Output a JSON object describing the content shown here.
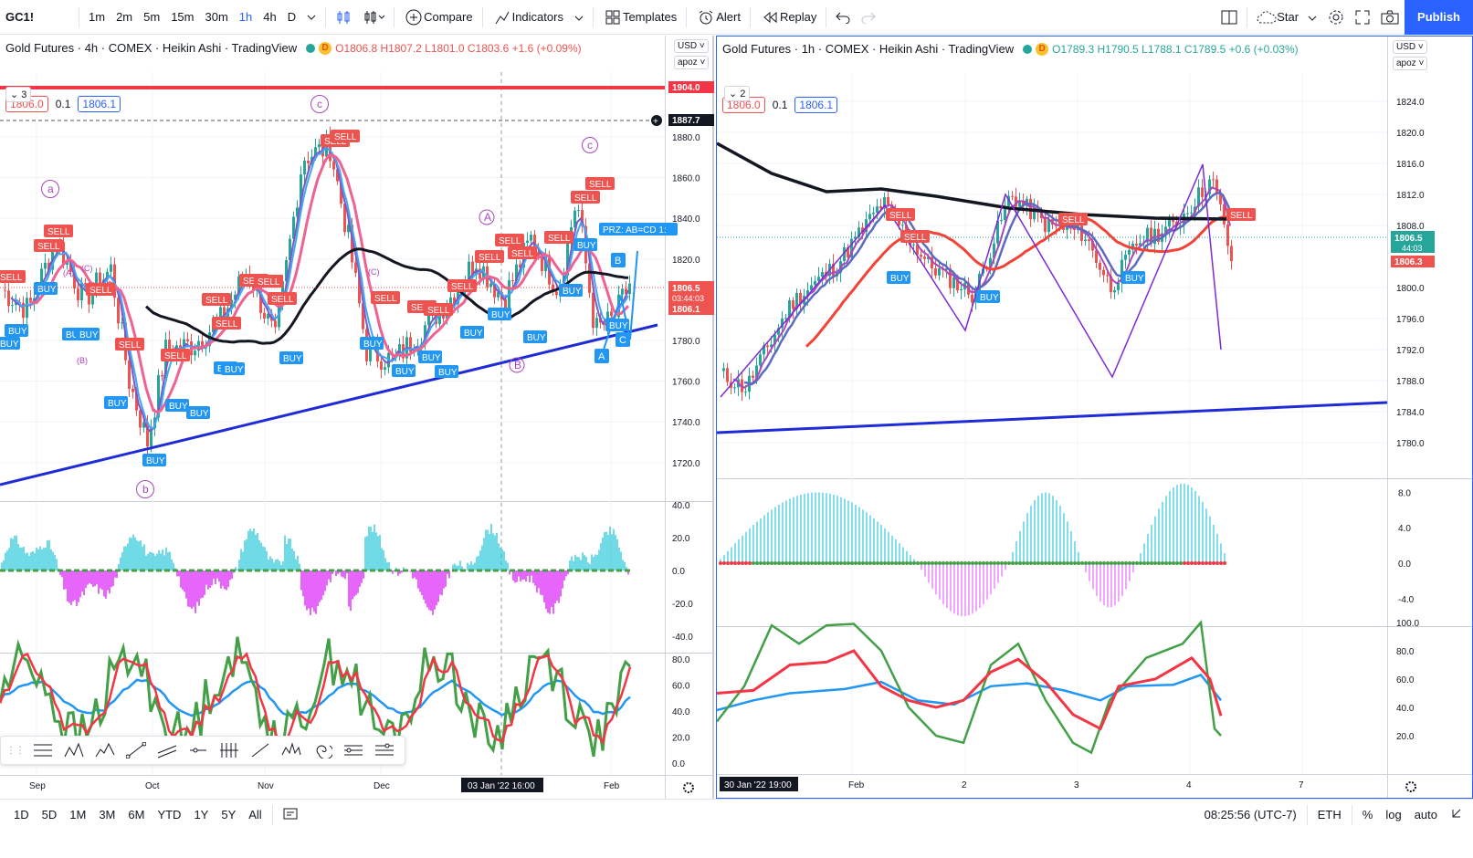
{
  "topbar": {
    "symbol": "GC1!",
    "intervals": [
      "1m",
      "2m",
      "5m",
      "15m",
      "30m",
      "1h",
      "4h",
      "D"
    ],
    "active_interval": "1h",
    "compare": "Compare",
    "indicators": "Indicators",
    "templates": "Templates",
    "alert": "Alert",
    "replay": "Replay",
    "star": "Star",
    "publish": "Publish"
  },
  "left_chart": {
    "title": "Gold Futures · 4h · COMEX · Heikin Ashi · TradingView",
    "ohlc": "O1806.8 H1807.2 L1801.0 C1803.6 +1.6 (+0.09%)",
    "price_red": "1806.0",
    "spread": "0.1",
    "price_blue": "1806.1",
    "collapse": "3",
    "currency": "USD",
    "scale_mode": "apoz",
    "price_axis": [
      "1880.0",
      "1860.0",
      "1840.0",
      "1820.0",
      "1800.0",
      "1780.0",
      "1760.0",
      "1740.0",
      "1720.0"
    ],
    "price_tags": {
      "red_line": "1904.0",
      "dashed_line": "1887.7",
      "last": "1806.5",
      "countdown": "03:44:03",
      "last2": "1806.1"
    },
    "osc_axis": [
      "40.0",
      "20.0",
      "0.0",
      "-20.0",
      "-40.0"
    ],
    "stoch_axis": [
      "80.0",
      "60.0",
      "40.0",
      "20.0",
      "0.0"
    ],
    "time_axis": [
      "Sep",
      "Oct",
      "Nov",
      "Dec",
      "Feb"
    ],
    "crosshair_time": "03 Jan '22   16:00",
    "prz_label": "PRZ: AB=CD 1:",
    "wave_labels": [
      "a",
      "b",
      "c",
      "c",
      "A",
      "B",
      "C",
      "(A)",
      "(B)",
      "(C)",
      "(C)"
    ],
    "pattern_labels": [
      "A",
      "B",
      "C"
    ],
    "signal_buy": "BUY",
    "signal_sell": "SELL"
  },
  "right_chart": {
    "title": "Gold Futures · 1h · COMEX · Heikin Ashi · TradingView",
    "ohlc": "O1789.3 H1790.5 L1788.1 C1789.5 +0.6 (+0.03%)",
    "price_red": "1806.0",
    "spread": "0.1",
    "price_blue": "1806.1",
    "collapse": "2",
    "currency": "USD",
    "scale_mode": "apoz",
    "price_axis": [
      "1824.0",
      "1820.0",
      "1816.0",
      "1812.0",
      "1808.0",
      "1800.0",
      "1796.0",
      "1792.0",
      "1788.0",
      "1784.0",
      "1780.0"
    ],
    "price_tags": {
      "last": "1806.5",
      "countdown": "44:03",
      "red": "1806.3"
    },
    "osc_axis": [
      "8.0",
      "4.0",
      "0.0",
      "-4.0"
    ],
    "stoch_axis": [
      "100.0",
      "80.0",
      "60.0",
      "40.0",
      "20.0"
    ],
    "time_axis": [
      "Feb",
      "2",
      "3",
      "4",
      "7"
    ],
    "crosshair_time": "30 Jan '22   19:00"
  },
  "bottombar": {
    "ranges": [
      "1D",
      "5D",
      "1M",
      "3M",
      "6M",
      "YTD",
      "1Y",
      "5Y",
      "All"
    ],
    "clock": "08:25:56 (UTC-7)",
    "session": "ETH",
    "percent": "%",
    "log": "log",
    "auto": "auto"
  },
  "colors": {
    "accent": "#2962ff",
    "red": "#f23645",
    "teal": "#26c6da",
    "magenta": "#e040fb",
    "green": "#43a047"
  }
}
